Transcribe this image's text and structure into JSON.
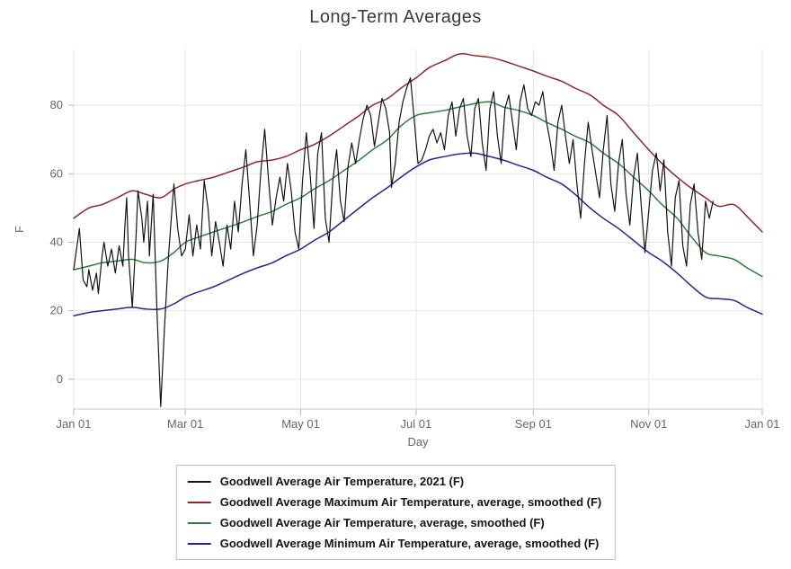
{
  "chart_data": {
    "type": "line",
    "title": "Long-Term Averages",
    "xlabel": "Day",
    "ylabel": "F",
    "grid": true,
    "legend_position": "bottom-center",
    "xlim": [
      0,
      364
    ],
    "ylim": [
      -8.7,
      96.3
    ],
    "x_ticks": [
      {
        "day": 0,
        "label": "Jan 01"
      },
      {
        "day": 59,
        "label": "Mar 01"
      },
      {
        "day": 120,
        "label": "May 01"
      },
      {
        "day": 181,
        "label": "Jul 01"
      },
      {
        "day": 243,
        "label": "Sep 01"
      },
      {
        "day": 304,
        "label": "Nov 01"
      },
      {
        "day": 364,
        "label": "Jan 01"
      }
    ],
    "y_ticks": [
      0,
      20,
      40,
      60,
      80
    ],
    "colors": {
      "axis_line": "#c9c9c9",
      "tick_mark": "#b5b5b5",
      "grid_line": "#e5e5e5",
      "tick_label": "#666666",
      "title_text": "#3b3b3b",
      "legend_border": "#c0c0c0"
    },
    "series": [
      {
        "name": "Goodwell Average Air Temperature, 2021 (F)",
        "color": "#151515",
        "smooth": false,
        "width": 1.2,
        "x": [
          0,
          2,
          3,
          5,
          7,
          8,
          10,
          12,
          13,
          15,
          16,
          18,
          20,
          22,
          24,
          26,
          27,
          28,
          29,
          31,
          33,
          34,
          36,
          37,
          39,
          40,
          42,
          44,
          46,
          48,
          50,
          52,
          53,
          55,
          57,
          59,
          61,
          63,
          65,
          67,
          69,
          71,
          73,
          75,
          77,
          79,
          81,
          83,
          85,
          87,
          89,
          91,
          93,
          95,
          97,
          99,
          101,
          103,
          105,
          107,
          109,
          111,
          113,
          115,
          117,
          119,
          121,
          123,
          125,
          127,
          129,
          131,
          133,
          135,
          137,
          139,
          141,
          143,
          145,
          147,
          149,
          151,
          153,
          155,
          157,
          159,
          161,
          163,
          165,
          167,
          168,
          170,
          172,
          174,
          176,
          178,
          180,
          182,
          184,
          186,
          188,
          190,
          192,
          194,
          196,
          198,
          200,
          202,
          204,
          206,
          208,
          210,
          212,
          214,
          216,
          218,
          220,
          222,
          224,
          226,
          228,
          230,
          232,
          234,
          236,
          238,
          240,
          242,
          244,
          246,
          248,
          250,
          252,
          254,
          256,
          258,
          260,
          262,
          264,
          266,
          268,
          270,
          272,
          274,
          276,
          278,
          280,
          282,
          284,
          286,
          288,
          290,
          292,
          294,
          296,
          298,
          300,
          302,
          304,
          306,
          308,
          310,
          312,
          314,
          316,
          318,
          320,
          322,
          324,
          326,
          328,
          330,
          332,
          334,
          336,
          338
        ],
        "values": [
          32,
          40,
          44,
          29,
          27,
          32,
          26,
          31,
          25,
          36,
          40,
          33,
          38,
          31,
          39,
          33,
          44,
          53,
          36,
          21,
          42,
          55,
          47,
          40,
          52,
          36,
          54,
          20,
          -8,
          15,
          35,
          50,
          57,
          44,
          36,
          38,
          48,
          36,
          45,
          38,
          58,
          50,
          36,
          46,
          40,
          33,
          45,
          38,
          52,
          43,
          57,
          67,
          52,
          36,
          45,
          61,
          73,
          58,
          45,
          53,
          59,
          52,
          63,
          55,
          43,
          38,
          58,
          72,
          60,
          44,
          66,
          72,
          47,
          40,
          58,
          67,
          52,
          46,
          62,
          69,
          63,
          70,
          76,
          80,
          77,
          68,
          75,
          82,
          79,
          72,
          56,
          63,
          75,
          81,
          85,
          88,
          76,
          63,
          64,
          67,
          71,
          73,
          69,
          72,
          67,
          77,
          81,
          71,
          79,
          82,
          71,
          65,
          79,
          82,
          69,
          61,
          79,
          84,
          71,
          63,
          79,
          83,
          75,
          67,
          81,
          86,
          79,
          77,
          81,
          80,
          84,
          75,
          69,
          61,
          75,
          80,
          71,
          63,
          70,
          57,
          47,
          63,
          75,
          67,
          60,
          53,
          67,
          77,
          57,
          49,
          63,
          70,
          54,
          45,
          59,
          66,
          51,
          37,
          49,
          61,
          66,
          55,
          64,
          43,
          33,
          53,
          58,
          39,
          33,
          51,
          57,
          43,
          35,
          52,
          47,
          52
        ]
      },
      {
        "name": "Goodwell Average Maximum Air Temperature, average, smoothed (F)",
        "color": "#8f2929",
        "smooth": true,
        "width": 1.5,
        "x": [
          0,
          8,
          15,
          23,
          31,
          38,
          46,
          53,
          59,
          66,
          74,
          82,
          90,
          97,
          105,
          112,
          120,
          127,
          135,
          143,
          151,
          158,
          166,
          173,
          181,
          188,
          196,
          204,
          212,
          220,
          227,
          235,
          243,
          250,
          258,
          265,
          273,
          280,
          288,
          296,
          304,
          311,
          319,
          326,
          334,
          341,
          349,
          356,
          364
        ],
        "values": [
          47,
          50,
          51,
          53,
          55,
          54,
          53,
          55.5,
          57,
          58,
          59,
          60.5,
          62,
          63.5,
          64,
          65,
          67,
          68.5,
          71,
          74,
          77,
          80,
          82,
          85,
          88,
          91,
          93,
          95,
          94.5,
          94,
          93,
          91.5,
          90,
          88.5,
          87,
          85,
          83,
          80,
          77,
          72,
          67,
          63,
          59,
          56,
          53,
          50.5,
          51,
          47.5,
          43
        ]
      },
      {
        "name": "Goodwell Average Air Temperature, average, smoothed (F)",
        "color": "#28803a",
        "smooth": true,
        "width": 1.5,
        "x": [
          0,
          8,
          15,
          23,
          31,
          38,
          46,
          53,
          59,
          66,
          74,
          82,
          90,
          97,
          105,
          112,
          120,
          127,
          135,
          143,
          151,
          158,
          166,
          173,
          181,
          188,
          196,
          204,
          212,
          220,
          227,
          235,
          243,
          250,
          258,
          265,
          273,
          280,
          288,
          296,
          304,
          311,
          319,
          326,
          334,
          341,
          349,
          356,
          364
        ],
        "values": [
          32,
          33,
          34,
          34.5,
          35,
          34,
          34.5,
          37,
          40,
          41.5,
          43,
          44.5,
          46,
          47.5,
          49,
          51,
          53,
          55.5,
          58,
          61,
          64,
          67,
          70,
          74,
          77,
          77.8,
          78.5,
          79.5,
          80.5,
          81,
          79.5,
          78.5,
          77,
          75,
          73,
          71,
          69,
          66,
          63,
          59,
          55,
          51,
          47,
          42,
          37,
          36,
          35,
          32.5,
          30
        ]
      },
      {
        "name": "Goodwell Average Minimum Air Temperature, average, smoothed (F)",
        "color": "#26268f",
        "smooth": true,
        "width": 1.5,
        "x": [
          0,
          8,
          15,
          23,
          31,
          38,
          46,
          53,
          59,
          66,
          74,
          82,
          90,
          97,
          105,
          112,
          120,
          127,
          135,
          143,
          151,
          158,
          166,
          173,
          181,
          188,
          196,
          204,
          212,
          220,
          227,
          235,
          243,
          250,
          258,
          265,
          273,
          280,
          288,
          296,
          304,
          311,
          319,
          326,
          334,
          341,
          349,
          356,
          364
        ],
        "values": [
          18.5,
          19.5,
          20,
          20.5,
          21,
          20.5,
          20.5,
          22,
          24,
          25.5,
          27,
          29,
          31,
          32.5,
          34,
          36,
          38,
          40.5,
          43,
          46.5,
          50,
          53,
          56,
          59,
          62,
          64,
          65,
          65.8,
          66,
          65,
          64,
          62.5,
          61,
          59,
          57,
          54,
          50,
          47,
          44,
          40.5,
          37,
          34.5,
          31,
          27.5,
          24,
          23.5,
          23,
          21,
          19
        ]
      }
    ]
  }
}
